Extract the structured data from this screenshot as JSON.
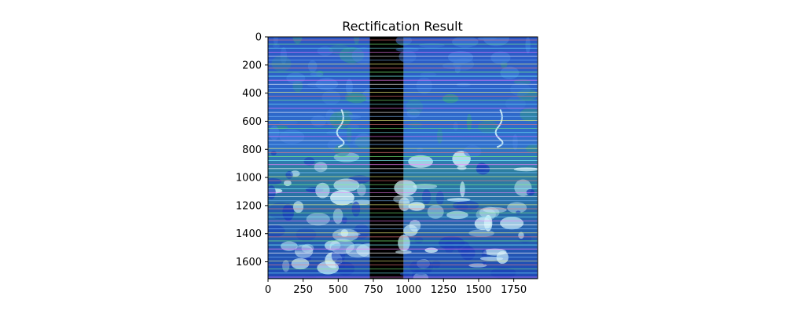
{
  "figure": {
    "title": "Rectification Result"
  },
  "image": {
    "width_units": 1920,
    "height_units": 1720,
    "left_image_end": 725,
    "black_gap_end": 965,
    "line_colors": [
      "#ff8080",
      "#80ff80",
      "#80ffff",
      "#ff80ff",
      "#ffffff",
      "#80c0ff",
      "#ffff80"
    ],
    "colors": {
      "deep_blue": "#1a3fb8",
      "mid_blue": "#3d78d8",
      "teal": "#2f8a9a",
      "ice": "#cfeff8",
      "gap": "#000000"
    }
  },
  "axes": {
    "x_ticks": [
      "0",
      "250",
      "500",
      "750",
      "1000",
      "1250",
      "1500",
      "1750"
    ],
    "y_ticks": [
      "0",
      "200",
      "400",
      "600",
      "800",
      "1000",
      "1200",
      "1400",
      "1600"
    ]
  }
}
